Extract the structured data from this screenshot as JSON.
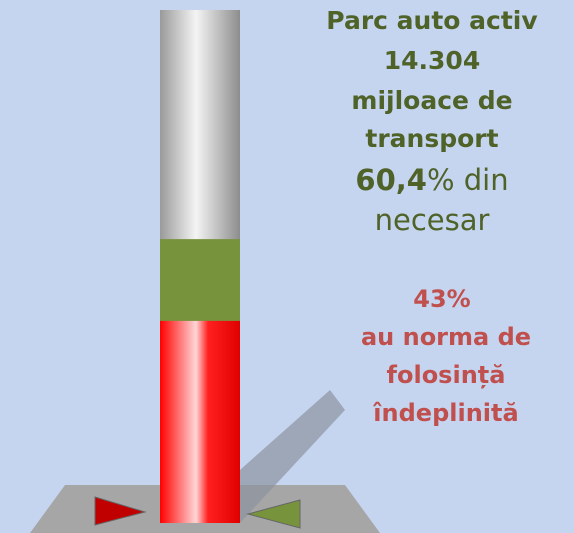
{
  "header": {
    "lines": [
      "Parc auto activ",
      "14.304",
      "mijloace de",
      "transport"
    ]
  },
  "fleet": {
    "value": 60.4,
    "label": "60,4",
    "suffix": "% din",
    "line2": "necesar",
    "color": "#77933c"
  },
  "norm": {
    "value": 43,
    "label": "43%",
    "lines": [
      "au norma de",
      "folosință",
      "îndeplinită"
    ],
    "color": "#ff1a1a"
  },
  "scale_max": 100
}
